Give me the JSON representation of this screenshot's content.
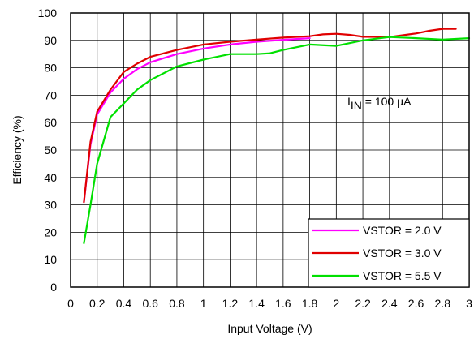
{
  "chart_data": {
    "type": "line",
    "xlabel": "Input Voltage (V)",
    "ylabel": "Efficiency (%)",
    "xlim": [
      0,
      3
    ],
    "ylim": [
      0,
      100
    ],
    "x_ticks": [
      0,
      0.2,
      0.4,
      0.6,
      0.8,
      1,
      1.2,
      1.4,
      1.6,
      1.8,
      2,
      2.2,
      2.4,
      2.6,
      2.8,
      3
    ],
    "x_tick_labels": [
      "0",
      "0.2",
      "0.4",
      "0.6",
      "0.8",
      "1",
      "1.2",
      "1.4",
      "1.6",
      "1.8",
      "2",
      "2.2",
      "2.4",
      "2.6",
      "2.8",
      "3"
    ],
    "y_ticks": [
      0,
      10,
      20,
      30,
      40,
      50,
      60,
      70,
      80,
      90,
      100
    ],
    "y_tick_labels": [
      "0",
      "10",
      "20",
      "30",
      "40",
      "50",
      "60",
      "70",
      "80",
      "90",
      "100"
    ],
    "grid": true,
    "legend_position": "bottom-right",
    "annotation": {
      "main": "I",
      "sub": "IN",
      "rest": " = 100 µA"
    },
    "series": [
      {
        "name": "VSTOR = 2.0 V",
        "color": "#ff00ff",
        "x": [
          0.1,
          0.15,
          0.2,
          0.3,
          0.4,
          0.5,
          0.6,
          0.8,
          1.0,
          1.2,
          1.4,
          1.6,
          1.8
        ],
        "y": [
          31,
          52,
          63,
          71,
          76,
          79.5,
          82,
          85,
          87,
          88.5,
          89.5,
          90.2,
          90.8
        ]
      },
      {
        "name": "VSTOR = 3.0 V",
        "color": "#e00000",
        "x": [
          0.1,
          0.15,
          0.2,
          0.3,
          0.4,
          0.5,
          0.6,
          0.8,
          1.0,
          1.2,
          1.4,
          1.6,
          1.8,
          1.9,
          2.0,
          2.1,
          2.2,
          2.4,
          2.6,
          2.7,
          2.8,
          2.9
        ],
        "y": [
          31,
          53,
          64,
          72,
          78.5,
          81.5,
          84,
          86.5,
          88.5,
          89.5,
          90.3,
          91,
          91.5,
          92.2,
          92.4,
          92,
          91.3,
          91.2,
          92.5,
          93.5,
          94.2,
          94.2
        ]
      },
      {
        "name": "VSTOR = 5.5 V",
        "color": "#00e000",
        "x": [
          0.1,
          0.15,
          0.2,
          0.3,
          0.4,
          0.5,
          0.6,
          0.8,
          1.0,
          1.2,
          1.4,
          1.5,
          1.6,
          1.8,
          2.0,
          2.2,
          2.4,
          2.6,
          2.8,
          3.0
        ],
        "y": [
          16,
          30,
          45,
          62,
          67,
          72,
          75.5,
          80.5,
          83,
          85,
          85,
          85.3,
          86.5,
          88.5,
          88,
          90,
          91.2,
          90.8,
          90.3,
          90.8
        ]
      }
    ]
  }
}
